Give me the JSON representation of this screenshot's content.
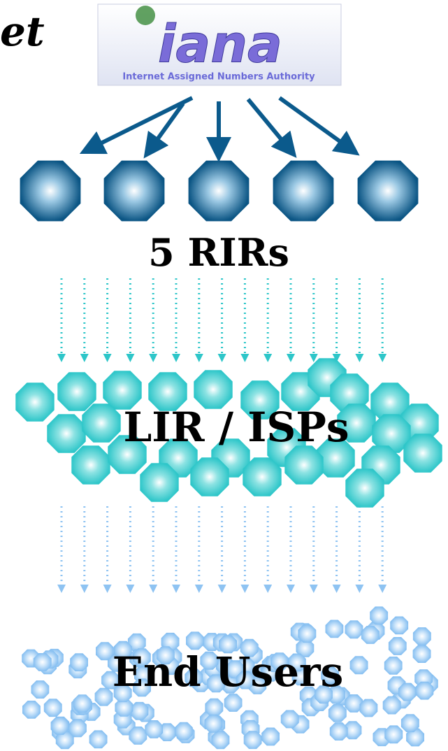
{
  "header": {
    "partial_title": "et"
  },
  "logo": {
    "name": "iana",
    "subtitle": "Internet Assigned Numbers Authority"
  },
  "levels": [
    {
      "label": "5 RIRs"
    },
    {
      "label": "LIR / ISPs"
    },
    {
      "label": "End Users"
    }
  ]
}
